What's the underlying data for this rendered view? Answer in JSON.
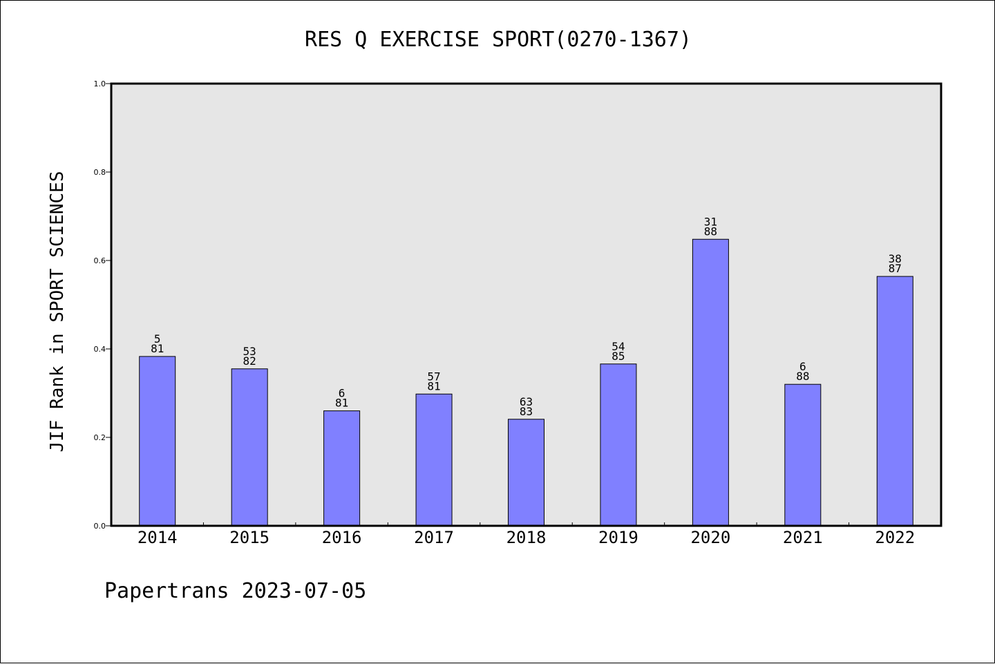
{
  "chart_data": {
    "type": "bar",
    "title": "RES Q EXERCISE SPORT(0270-1367)",
    "xlabel": "",
    "ylabel": "JIF Rank in SPORT SCIENCES",
    "ylim": [
      0.0,
      1.0
    ],
    "yticks": [
      "0.0",
      "0.2",
      "0.4",
      "0.6",
      "0.8",
      "1.0"
    ],
    "ytick_values": [
      0.0,
      0.2,
      0.4,
      0.6,
      0.8,
      1.0
    ],
    "categories": [
      "2014",
      "2015",
      "2016",
      "2017",
      "2018",
      "2019",
      "2020",
      "2021",
      "2022"
    ],
    "values": [
      0.383,
      0.355,
      0.26,
      0.298,
      0.241,
      0.366,
      0.648,
      0.32,
      0.564
    ],
    "rank_labels": [
      {
        "rank": "5",
        "total": "81"
      },
      {
        "rank": "53",
        "total": "82"
      },
      {
        "rank": "6",
        "total": "81"
      },
      {
        "rank": "57",
        "total": "81"
      },
      {
        "rank": "63",
        "total": "83"
      },
      {
        "rank": "54",
        "total": "85"
      },
      {
        "rank": "31",
        "total": "88"
      },
      {
        "rank": "6",
        "total": "88"
      },
      {
        "rank": "38",
        "total": "87"
      }
    ],
    "grid": false,
    "colors": {
      "bar": "#8080ff",
      "plot_background": "#e6e6e6"
    }
  },
  "footer": "Papertrans 2023-07-05"
}
